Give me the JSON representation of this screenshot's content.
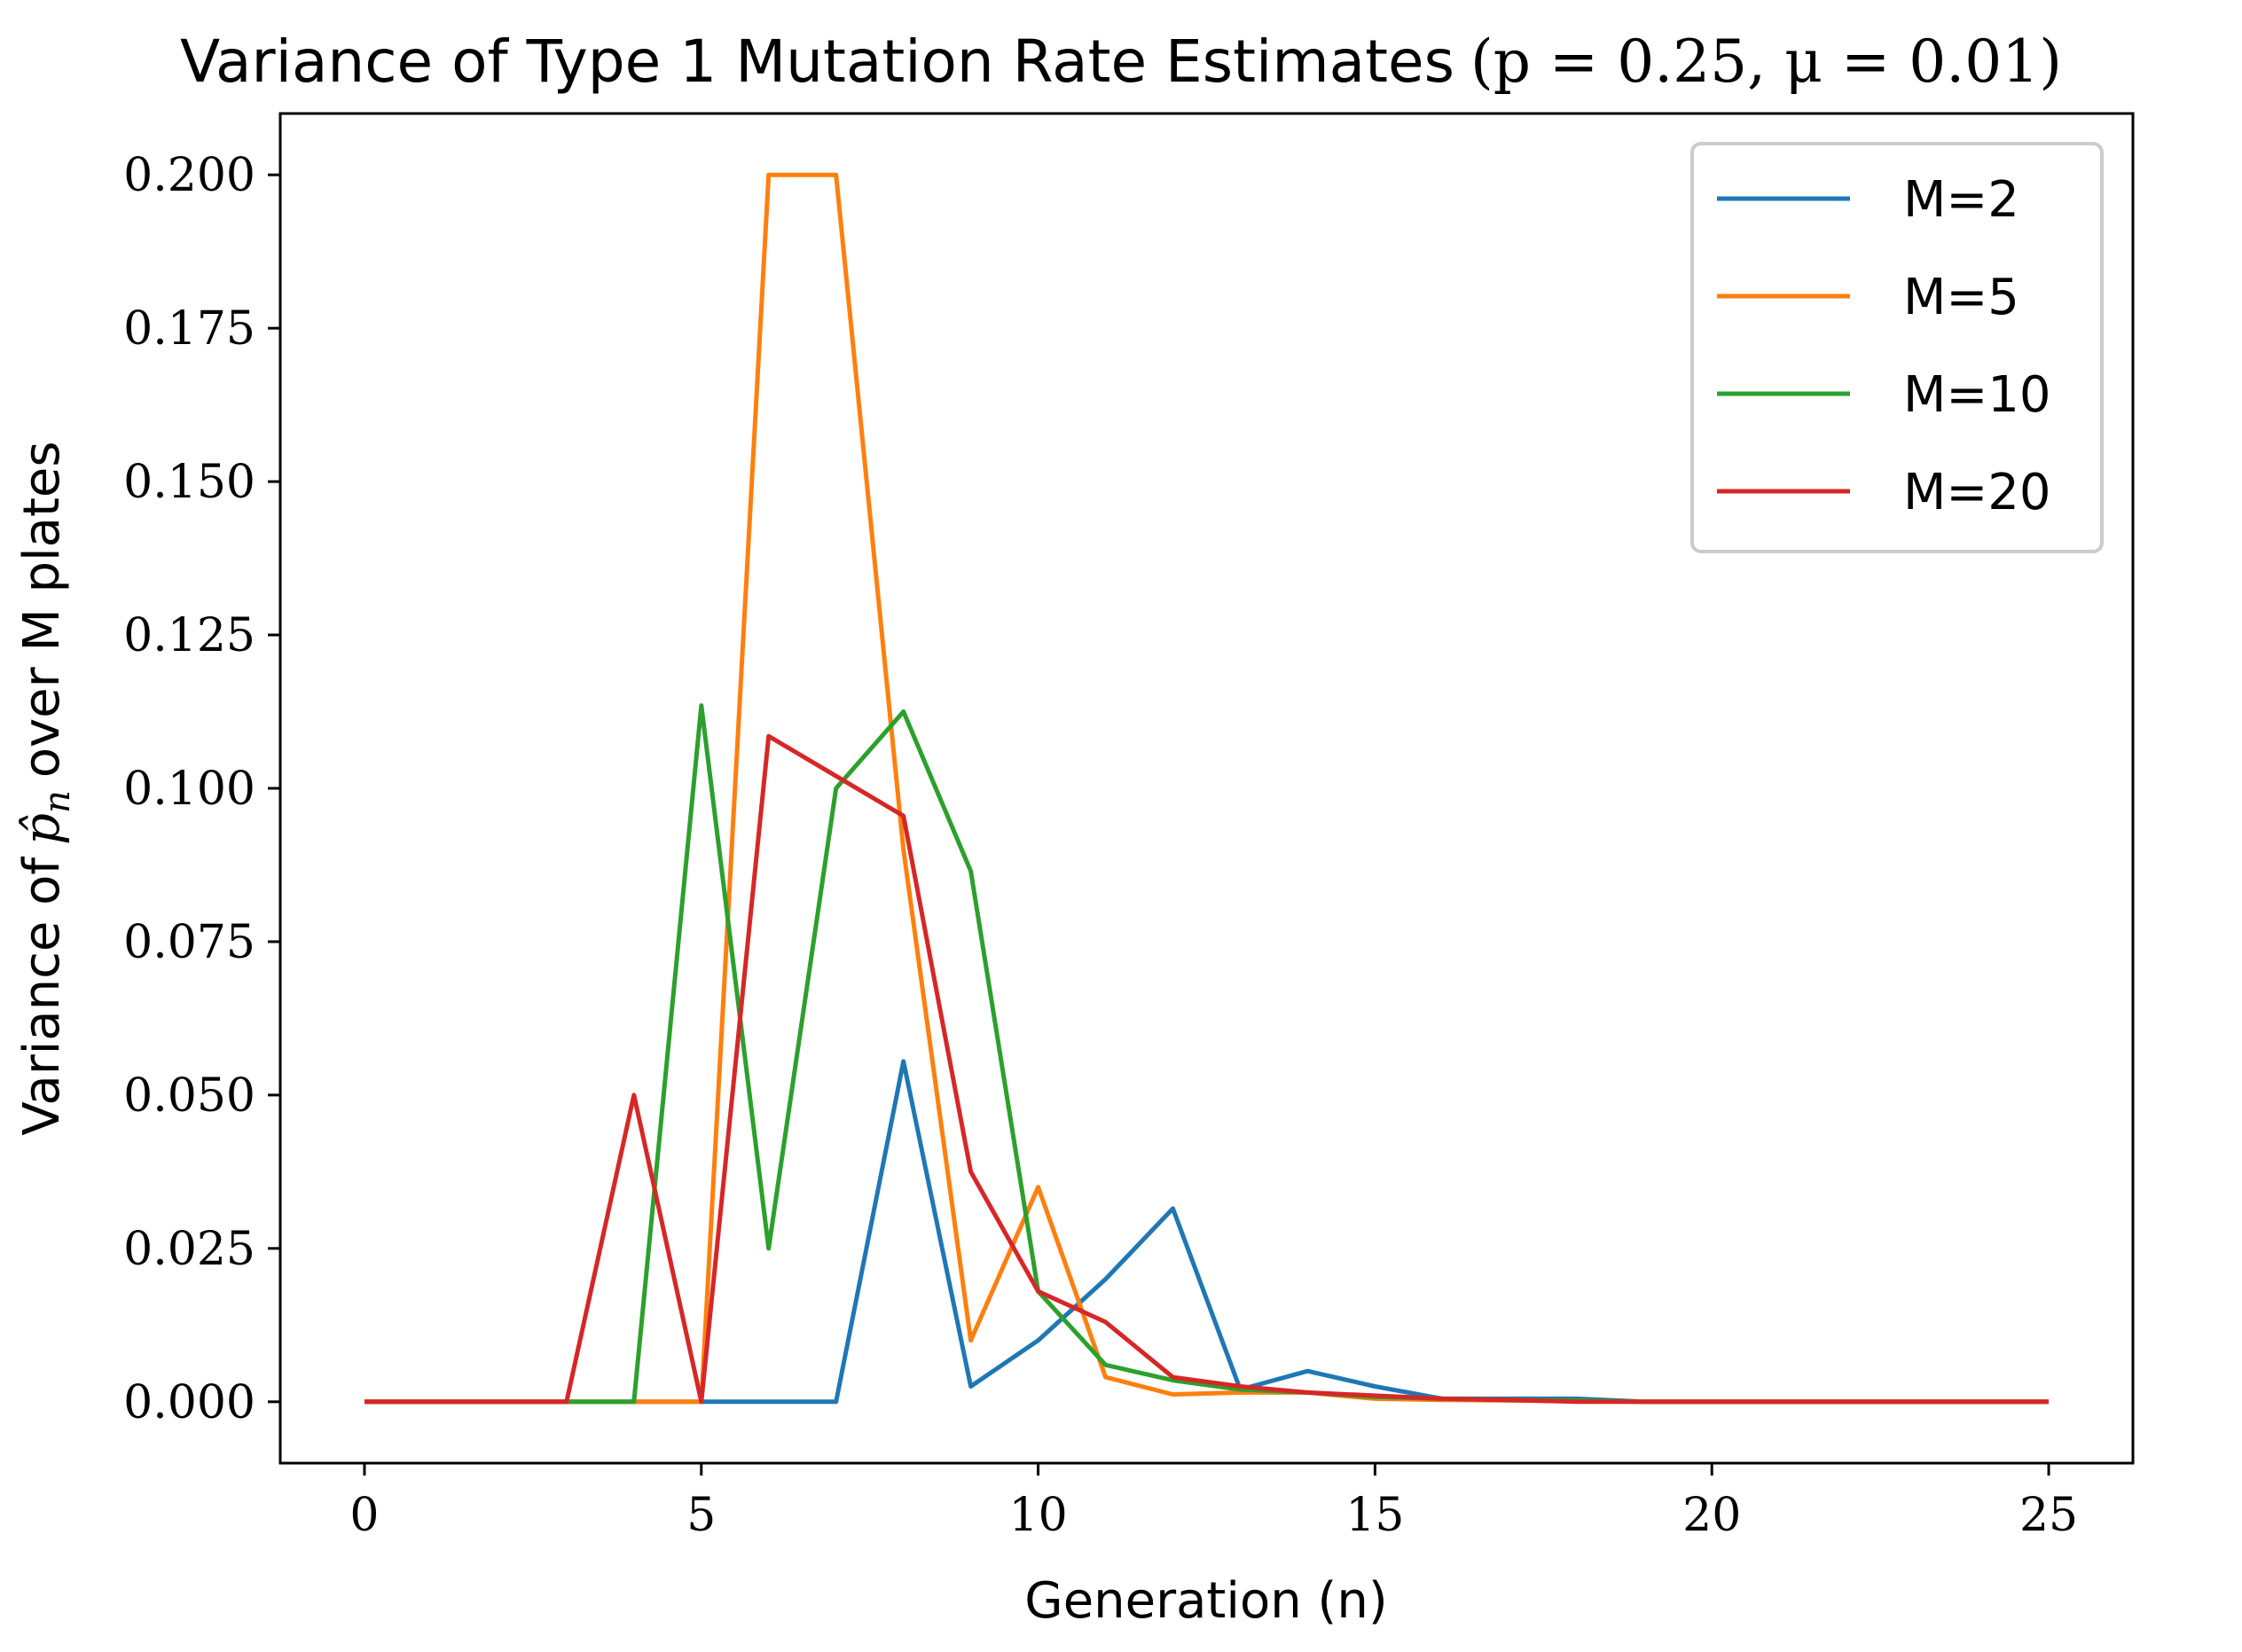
{
  "chart_data": {
    "type": "line",
    "title": "Variance of Type 1 Mutation Rate Estimates",
    "title_math": "(p = 0.25, μ = 0.01)",
    "xlabel": "Generation (n)",
    "ylabel_prefix": "Variance of",
    "ylabel_symbol": "p̂",
    "ylabel_subscript": "n",
    "ylabel_suffix": "over M plates",
    "xlim": [
      -1.25,
      26.25
    ],
    "ylim": [
      -0.01,
      0.21
    ],
    "xticks": [
      0,
      5,
      10,
      15,
      20,
      25
    ],
    "xtick_labels": [
      "0",
      "5",
      "10",
      "15",
      "20",
      "25"
    ],
    "yticks": [
      0.0,
      0.025,
      0.05,
      0.075,
      0.1,
      0.125,
      0.15,
      0.175,
      0.2
    ],
    "ytick_labels": [
      "0.000",
      "0.025",
      "0.050",
      "0.075",
      "0.100",
      "0.125",
      "0.150",
      "0.175",
      "0.200"
    ],
    "grid": false,
    "legend_position": "top-right",
    "x": [
      0,
      1,
      2,
      3,
      4,
      5,
      6,
      7,
      8,
      9,
      10,
      11,
      12,
      13,
      14,
      15,
      16,
      17,
      18,
      19,
      20,
      21,
      22,
      23,
      24,
      25
    ],
    "series": [
      {
        "name": "M=2",
        "color": "#1f77b4",
        "values": [
          0,
          0,
          0,
          0,
          0,
          0,
          0,
          0,
          0.0555,
          0.0025,
          0.01,
          0.02,
          0.0315,
          0.002,
          0.005,
          0.0025,
          0.0005,
          0.0005,
          0.0005,
          0,
          0,
          0,
          0,
          0,
          0,
          0
        ]
      },
      {
        "name": "M=5",
        "color": "#ff7f0e",
        "values": [
          0,
          0,
          0,
          0,
          0,
          0,
          0.2,
          0.2,
          0.09,
          0.01,
          0.035,
          0.004,
          0.0012,
          0.0015,
          0.0015,
          0.0005,
          0.0003,
          0.0002,
          0.0001,
          0,
          0,
          0,
          0,
          0,
          0,
          0
        ]
      },
      {
        "name": "M=10",
        "color": "#2ca02c",
        "values": [
          0,
          0,
          0,
          0,
          0,
          0.1135,
          0.025,
          0.1,
          0.1125,
          0.0865,
          0.018,
          0.006,
          0.0035,
          0.002,
          0.0015,
          0.0008,
          0.0005,
          0.0003,
          0.0002,
          0,
          0,
          0,
          0,
          0,
          0,
          0
        ]
      },
      {
        "name": "M=20",
        "color": "#d62728",
        "values": [
          0,
          0,
          0,
          0,
          0.05,
          0,
          0.1085,
          0.102,
          0.0955,
          0.0375,
          0.018,
          0.013,
          0.004,
          0.0025,
          0.0015,
          0.001,
          0.0005,
          0.0003,
          0,
          0,
          0,
          0,
          0,
          0,
          0,
          0
        ]
      }
    ]
  }
}
